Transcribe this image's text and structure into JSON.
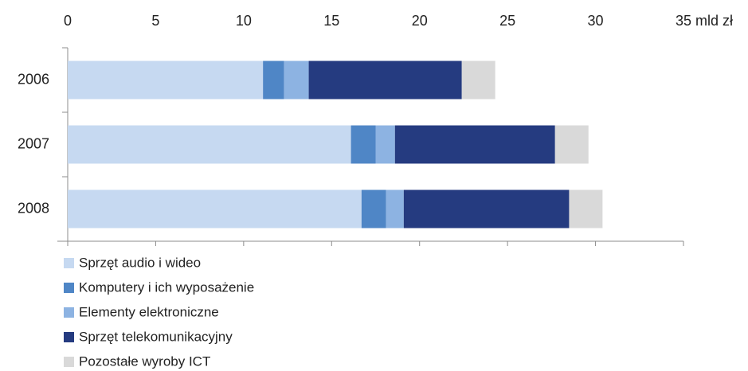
{
  "chart_data": {
    "type": "stacked-barh",
    "categories": [
      "2006",
      "2007",
      "2008"
    ],
    "series": [
      {
        "name": "Sprzęt audio i wideo",
        "color": "#c6d9f1",
        "values": [
          11.1,
          16.1,
          16.7
        ]
      },
      {
        "name": "Komputery i ich wyposażenie",
        "color": "#4f86c6",
        "values": [
          1.2,
          1.4,
          1.4
        ]
      },
      {
        "name": "Elementy elektroniczne",
        "color": "#8db3e2",
        "values": [
          1.4,
          1.1,
          1.0
        ]
      },
      {
        "name": "Sprzęt telekomunikacyjny",
        "color": "#253b80",
        "values": [
          8.7,
          9.1,
          9.4
        ]
      },
      {
        "name": "Pozostałe wyroby ICT",
        "color": "#d9d9d9",
        "values": [
          1.9,
          1.9,
          1.9
        ]
      }
    ],
    "xlim": [
      0,
      35
    ],
    "xticks": [
      0,
      5,
      10,
      15,
      20,
      25,
      30,
      {
        "value": 35,
        "label": "35 mld zł"
      }
    ],
    "legend": "bottom-left"
  }
}
